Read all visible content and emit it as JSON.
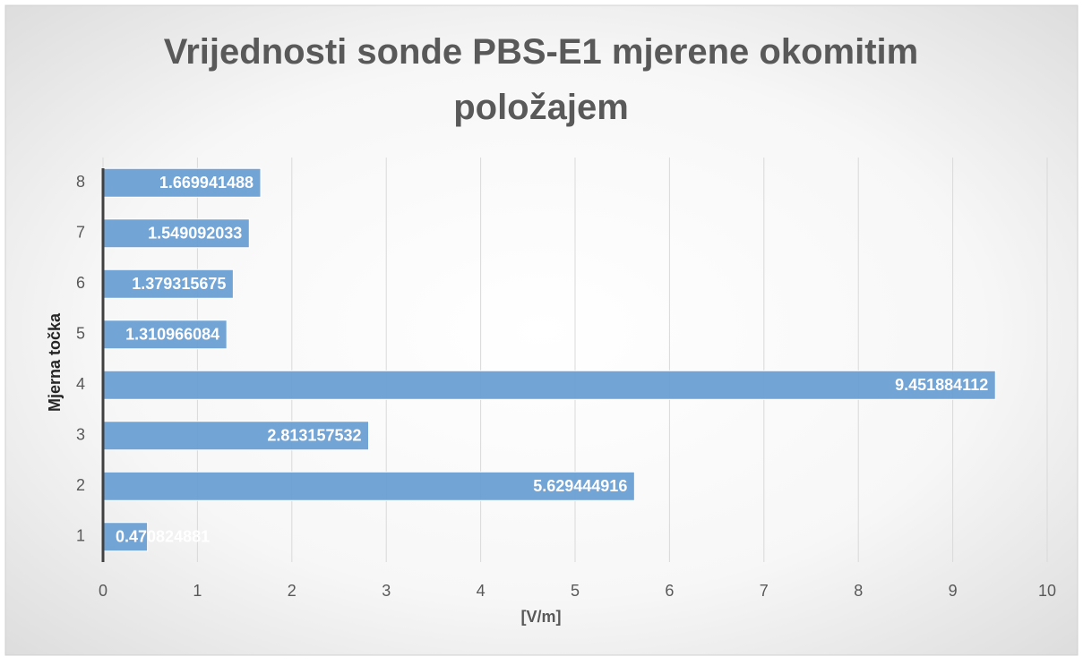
{
  "chart_data": {
    "type": "bar",
    "orientation": "horizontal",
    "title": "Vrijednosti sonde PBS-E1 mjerene okomitim položajem",
    "x_label": "[V/m]",
    "y_label": "Mjerna točka",
    "categories": [
      "1",
      "2",
      "3",
      "4",
      "5",
      "6",
      "7",
      "8"
    ],
    "values": [
      0.470824881,
      5.629444916,
      2.813157532,
      9.451884112,
      1.310966084,
      1.379315675,
      1.549092033,
      1.669941488
    ],
    "color": "#6a9fd4",
    "xlim": [
      0,
      10
    ],
    "xticks": [
      0,
      1,
      2,
      3,
      4,
      5,
      6,
      7,
      8,
      9,
      10
    ],
    "grid": true
  }
}
